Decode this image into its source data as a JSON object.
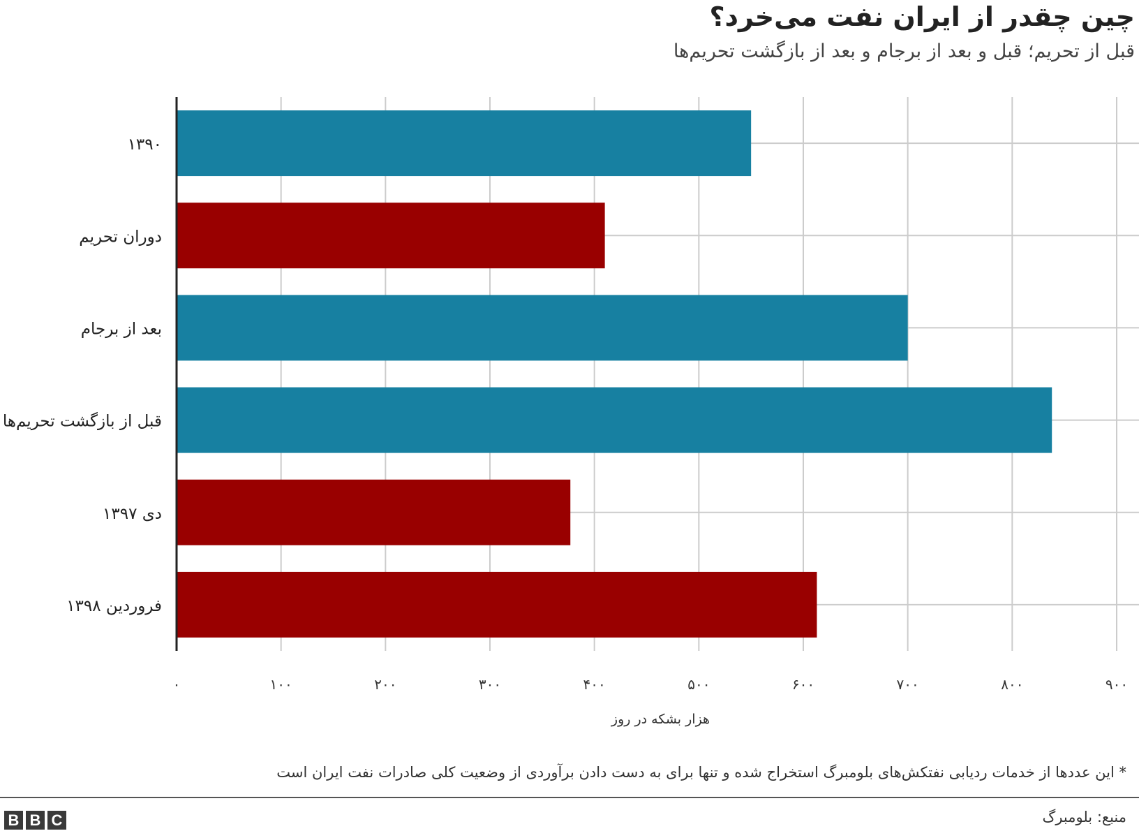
{
  "title": "چین چقدر از ایران نفت می‌خرد؟",
  "subtitle": "قبل از تحریم؛ قبل و بعد از برجام و بعد از بازگشت تحریم‌ها",
  "footnote": "* این عددها از خدمات ردیابی نفتکش‌های بلومبرگ استخراج شده و تنها برای به دست دادن برآوردی از وضعیت کلی صادرات نفت ایران است",
  "source": "منبع: بلومبرگ",
  "logo": [
    "B",
    "B",
    "C"
  ],
  "colors": {
    "teal": "#1780a1",
    "red": "#990000",
    "grid": "#cccccc",
    "axis": "#222222"
  },
  "chart_data": {
    "type": "bar",
    "orientation": "horizontal",
    "categories": [
      "۱۳۹۰",
      "دوران تحریم",
      "بعد از برجام",
      "قبل از بازگشت تحریم‌ها",
      "دی ۱۳۹۷",
      "فروردین ۱۳۹۸"
    ],
    "values": [
      550,
      410,
      700,
      838,
      377,
      613
    ],
    "bar_colors": [
      "#1780a1",
      "#990000",
      "#1780a1",
      "#1780a1",
      "#990000",
      "#990000"
    ],
    "xlabel": "هزار بشکه در روز",
    "xlim": [
      0,
      900
    ],
    "xticks": [
      0,
      100,
      200,
      300,
      400,
      500,
      600,
      700,
      800,
      900
    ],
    "xtick_labels": [
      "۰",
      "۱۰۰",
      "۲۰۰",
      "۳۰۰",
      "۴۰۰",
      "۵۰۰",
      "۶۰۰",
      "۷۰۰",
      "۸۰۰",
      "۹۰۰"
    ],
    "grid": true
  }
}
